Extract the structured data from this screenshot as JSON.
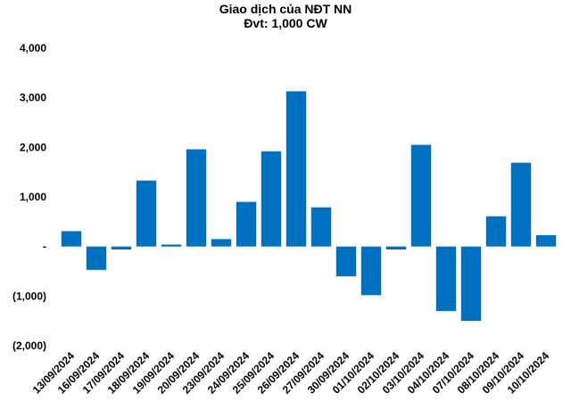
{
  "chart_data": {
    "type": "bar",
    "title": "Giao dịch của NĐT NN",
    "subtitle": "Đvt: 1,000 CW",
    "xlabel": "",
    "ylabel": "",
    "ylim": [
      -2000,
      4000
    ],
    "yticks": [
      4000,
      3000,
      2000,
      1000,
      0,
      -1000,
      -2000
    ],
    "ytick_labels": [
      "4,000",
      "3,000",
      "2,000",
      "1,000",
      "-",
      "(1,000)",
      "(2,000)"
    ],
    "grid": false,
    "legend": "none",
    "bar_color": "#0070C0",
    "categories": [
      "13/09/2024",
      "16/09/2024",
      "17/09/2024",
      "18/09/2024",
      "19/09/2024",
      "20/09/2024",
      "23/09/2024",
      "24/09/2024",
      "25/09/2024",
      "26/09/2024",
      "27/09/2024",
      "30/09/2024",
      "01/10/2024",
      "02/10/2024",
      "03/10/2024",
      "04/10/2024",
      "07/10/2024",
      "08/10/2024",
      "09/10/2024",
      "10/10/2024"
    ],
    "values": [
      310,
      -470,
      -60,
      1330,
      40,
      1960,
      150,
      900,
      1920,
      3130,
      790,
      -600,
      -980,
      -60,
      2050,
      -1300,
      -1500,
      610,
      1690,
      230
    ]
  }
}
